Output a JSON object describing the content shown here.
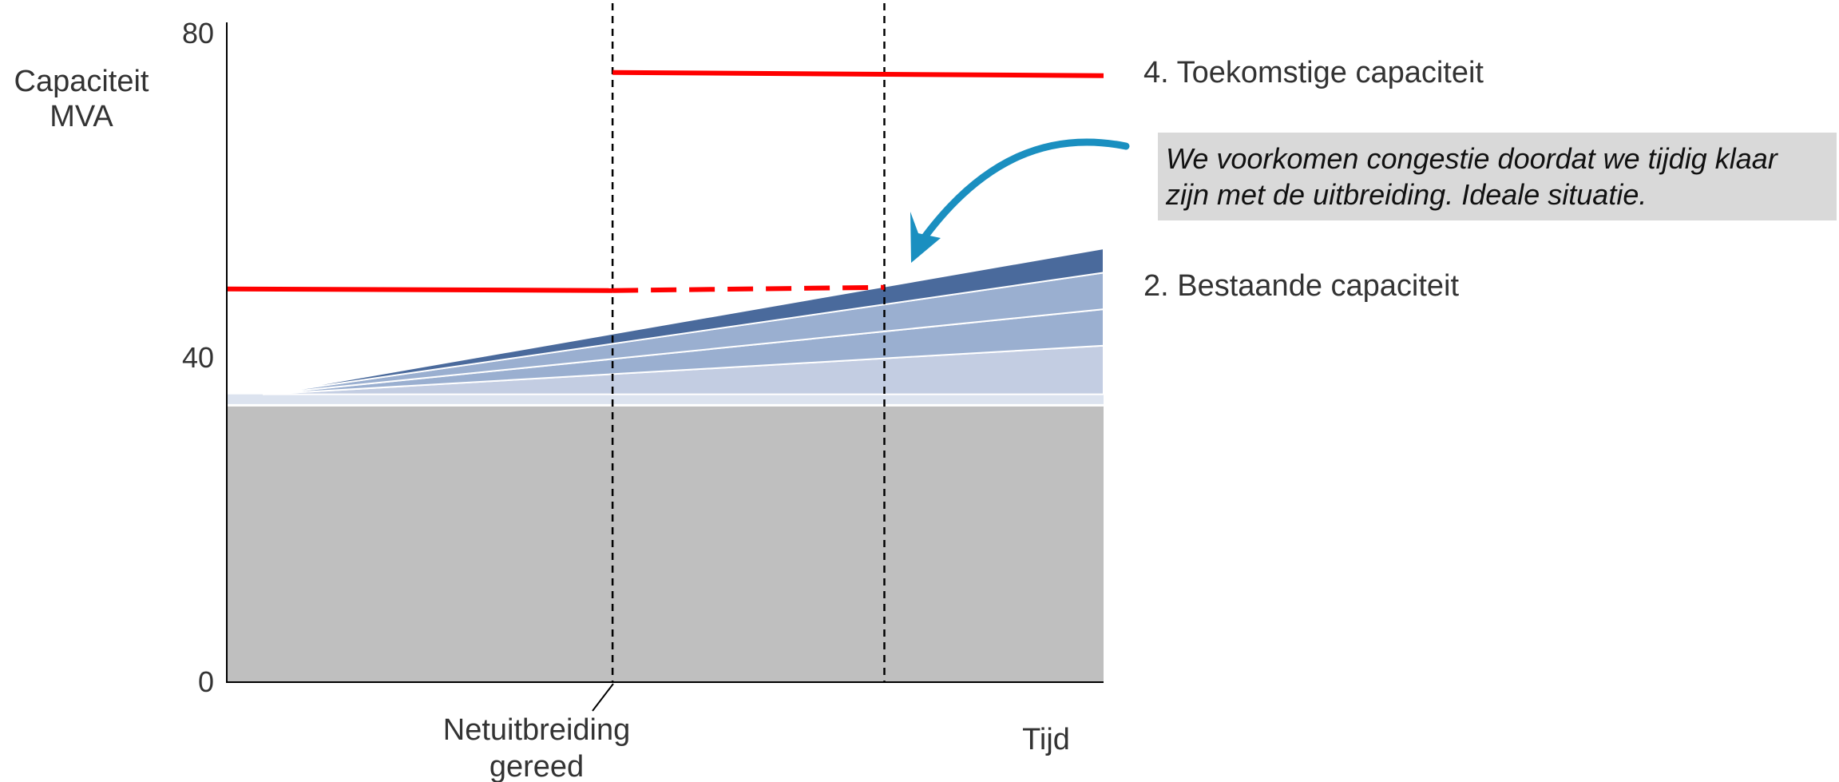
{
  "chart_data": {
    "type": "area",
    "ylabel": [
      "Capaciteit",
      "MVA"
    ],
    "xlabel": "Tijd",
    "ylim": [
      0,
      80
    ],
    "yticks": [
      0,
      40,
      80
    ],
    "grid": false,
    "base_load": 34,
    "demand_growth": {
      "start_value": 35.5,
      "end_values": [
        41.5,
        46,
        50.5,
        53.5
      ],
      "colors": [
        "#c3cde2",
        "#9aafd0",
        "#9aafd0",
        "#4a6a9c"
      ]
    },
    "vertical_markers": [
      {
        "label": [
          "Netuitbreiding",
          "gereed"
        ],
        "position": 0.44
      },
      {
        "label": [],
        "position": 0.75
      }
    ],
    "series": [
      {
        "name": "4. Toekomstige capaciteit",
        "value": 75,
        "from": 0.44,
        "to": 1.0,
        "color": "#ff0000"
      },
      {
        "name": "2. Bestaande capaciteit",
        "value": 48.5,
        "solid_from": 0.0,
        "solid_to": 0.44,
        "dashed_to": 0.75,
        "color": "#ff0000"
      }
    ],
    "annotation": {
      "text_lines": [
        "We voorkomen congestie doordat we tijdig klaar",
        "zijn met de uitbreiding. Ideale situatie."
      ],
      "background": "#d9d9d9",
      "arrow_color": "#1a8fc0"
    }
  }
}
